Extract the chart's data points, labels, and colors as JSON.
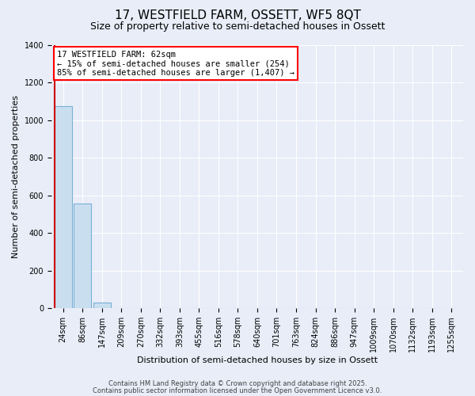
{
  "title": "17, WESTFIELD FARM, OSSETT, WF5 8QT",
  "subtitle": "Size of property relative to semi-detached houses in Ossett",
  "xlabel": "Distribution of semi-detached houses by size in Ossett",
  "ylabel": "Number of semi-detached properties",
  "bin_labels": [
    "24sqm",
    "86sqm",
    "147sqm",
    "209sqm",
    "270sqm",
    "332sqm",
    "393sqm",
    "455sqm",
    "516sqm",
    "578sqm",
    "640sqm",
    "701sqm",
    "763sqm",
    "824sqm",
    "886sqm",
    "947sqm",
    "1009sqm",
    "1070sqm",
    "1132sqm",
    "1193sqm",
    "1255sqm"
  ],
  "bar_values": [
    1075,
    555,
    30,
    0,
    0,
    0,
    0,
    0,
    0,
    0,
    0,
    0,
    0,
    0,
    0,
    0,
    0,
    0,
    0,
    0,
    0
  ],
  "bar_color": "#c9dff0",
  "bar_edge_color": "#7ab0d4",
  "annotation_text": "17 WESTFIELD FARM: 62sqm\n← 15% of semi-detached houses are smaller (254)\n85% of semi-detached houses are larger (1,407) →",
  "vline_color": "#cc0000",
  "vline_x": -0.5,
  "ylim": [
    0,
    1400
  ],
  "yticks": [
    0,
    200,
    400,
    600,
    800,
    1000,
    1200,
    1400
  ],
  "footer1": "Contains HM Land Registry data © Crown copyright and database right 2025.",
  "footer2": "Contains public sector information licensed under the Open Government Licence v3.0.",
  "background_color": "#e8edf8",
  "plot_bg_color": "#e8edf8",
  "title_fontsize": 11,
  "subtitle_fontsize": 9,
  "annot_fontsize": 7.5,
  "ylabel_fontsize": 8,
  "xlabel_fontsize": 8,
  "tick_fontsize": 7,
  "footer_fontsize": 6
}
